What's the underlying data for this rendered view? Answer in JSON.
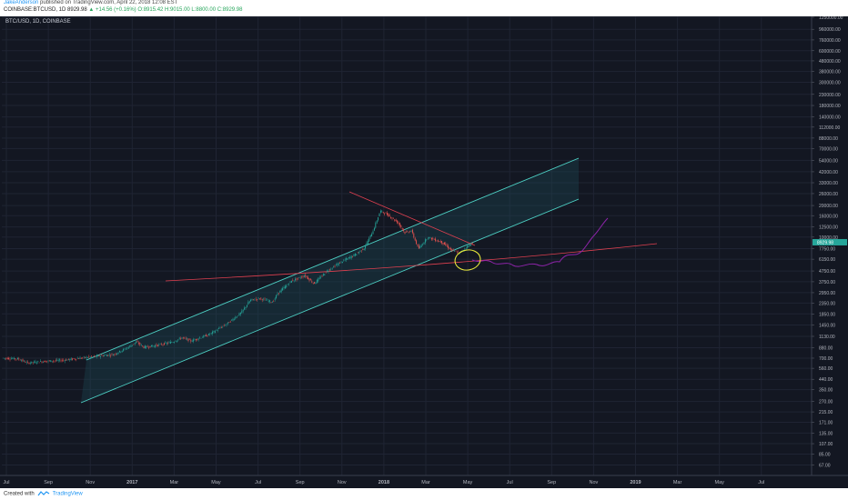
{
  "header": {
    "author": "JakeAnderson",
    "published": " published on TradingView.com, April 22, 2018 12:08 EST",
    "symbol_line": "COINBASE:BTCUSD, 1D  8929.98",
    "change": "▲ +14.56 (+0.16%)",
    "ohlc": "O:8915.42  H:9015.00  L:8800.00  C:8929.98"
  },
  "chart_label": "BTC/USD, 1D, COINBASE",
  "footer": {
    "created_with": "Created with",
    "brand": "TradingView"
  },
  "colors": {
    "background": "#131722",
    "up_candle": "#26a69a",
    "down_candle": "#ef5350",
    "channel": "#4dd0c4",
    "trendline": "#e04050",
    "projection": "#8e24aa",
    "ellipse": "#e8e83a"
  },
  "chart_data": {
    "type": "line",
    "y_scale": "log",
    "ylim": [
      60,
      1250000
    ],
    "x_ticks": [
      "Jul",
      "Sep",
      "Nov",
      "2017",
      "Mar",
      "May",
      "Jul",
      "Sep",
      "Nov",
      "2018",
      "Mar",
      "May",
      "Jul",
      "Sep",
      "Nov",
      "2019",
      "Mar",
      "May",
      "Jul"
    ],
    "y_ticks": [
      "1250000.00",
      "960000.00",
      "760000.00",
      "600000.00",
      "480000.00",
      "380000.00",
      "300000.00",
      "230000.00",
      "180000.00",
      "140000.00",
      "112000.00",
      "88000.00",
      "70000.00",
      "54000.00",
      "42000.00",
      "33000.00",
      "26000.00",
      "20000.00",
      "16000.00",
      "12500.00",
      "10000.00",
      "7750.00",
      "6150.00",
      "4750.00",
      "3750.00",
      "2950.00",
      "2350.00",
      "1850.00",
      "1450.00",
      "1130.00",
      "880.00",
      "700.00",
      "560.00",
      "440.00",
      "350.00",
      "270.00",
      "215.00",
      "171.00",
      "135.00",
      "107.00",
      "85.00",
      "67.00"
    ],
    "series": [
      {
        "values": [
          {
            "x": "Jul",
            "y": 680
          },
          {
            "x": "Sep",
            "y": 600
          },
          {
            "x": "Nov",
            "y": 700
          },
          {
            "x": "2017",
            "y": 970
          },
          {
            "x": "Mar",
            "y": 1100
          },
          {
            "x": "May",
            "y": 1900
          },
          {
            "x": "Jul",
            "y": 2600
          },
          {
            "x": "Sep",
            "y": 4200
          },
          {
            "x": "Nov",
            "y": 9500
          },
          {
            "x": "2018",
            "y": 14000
          },
          {
            "x": "Mar",
            "y": 8000
          },
          {
            "x": "May",
            "y": 8930
          }
        ]
      }
    ]
  }
}
